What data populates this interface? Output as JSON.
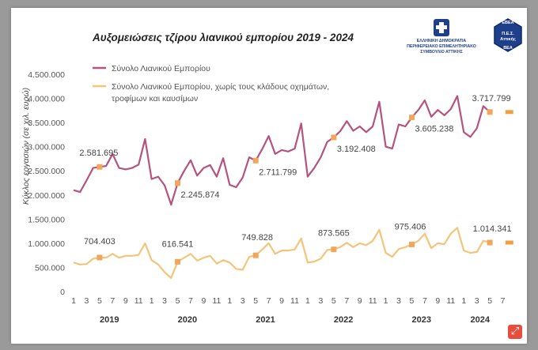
{
  "header": {
    "title": "Αυξομειώσεις τζίρου λιανικού εμπορίου 2019 - 2024",
    "logo_left_line1": "ΕΛΛΗΝΙΚΗ ΔΗΜΟΚΡΑΤΙΑ",
    "logo_left_line2": "ΠΕΡΙΦΕΡΕΙΑΚΟ ΕΠΙΜΕΛΗΤΗΡΙΑΚΟ",
    "logo_left_line3": "ΣΥΜΒΟΥΛΙΟ ΑΤΤΙΚΗΣ",
    "badge_line1": "Π.Ε.Σ.",
    "badge_line2": "Αττικής",
    "badge_ring_top": "ΕΒΕΑ",
    "badge_ring_bottom": "ΒΕΑ"
  },
  "colors": {
    "series1": "#b5537f",
    "series2": "#f3c57a",
    "marker": "#f2a65a",
    "projection": "#f0a040"
  },
  "chart_data": {
    "type": "line",
    "title": "Αυξομειώσεις τζίρου λιανικού εμπορίου 2019 - 2024",
    "ylabel": "Κύκλος εργασιών (σε χιλ. ευρώ)",
    "xlabel": "",
    "ylim": [
      0,
      4500000
    ],
    "yticks": [
      "0",
      "500.000",
      "1.000.000",
      "1.500.000",
      "2.000.000",
      "2.500.000",
      "3.000.000",
      "3.500.000",
      "4.000.000",
      "4.500.000"
    ],
    "ytick_values": [
      0,
      500000,
      1000000,
      1500000,
      2000000,
      2500000,
      3000000,
      3500000,
      4000000,
      4500000
    ],
    "xtick_labels": [
      "1",
      "3",
      "5",
      "7",
      "9",
      "11",
      "1",
      "3",
      "5",
      "7",
      "9",
      "11",
      "1",
      "3",
      "5",
      "7",
      "9",
      "11",
      "1",
      "3",
      "5",
      "7",
      "9",
      "11",
      "1",
      "3",
      "5",
      "7",
      "9",
      "11",
      "1",
      "3",
      "5",
      "7"
    ],
    "xtick_months": [
      1,
      3,
      5,
      7,
      9,
      11,
      13,
      15,
      17,
      19,
      21,
      23,
      25,
      27,
      29,
      31,
      33,
      35,
      37,
      39,
      41,
      43,
      45,
      47,
      49,
      51,
      53,
      55,
      57,
      59,
      61,
      63,
      65,
      67
    ],
    "years": [
      "2019",
      "2020",
      "2021",
      "2022",
      "2023",
      "2024"
    ],
    "year_center_months": [
      6.5,
      18.5,
      30.5,
      42.5,
      54.5,
      63.5
    ],
    "series": [
      {
        "name": "Σύνολο Λιανικού Εμπορίου",
        "values": [
          2100000,
          2060000,
          2300000,
          2560000,
          2581695,
          2600000,
          2850000,
          2560000,
          2530000,
          2560000,
          2630000,
          3160000,
          2330000,
          2380000,
          2200000,
          1800000,
          2245874,
          2500000,
          2720000,
          2400000,
          2560000,
          2620000,
          2380000,
          2760000,
          2210000,
          2160000,
          2360000,
          2780000,
          2711799,
          2950000,
          3220000,
          2850000,
          2930000,
          2900000,
          2960000,
          3480000,
          2380000,
          2560000,
          2780000,
          3100000,
          3192408,
          3320000,
          3530000,
          3330000,
          3420000,
          3300000,
          3420000,
          3930000,
          3000000,
          2960000,
          3460000,
          3420000,
          3605238,
          3760000,
          3960000,
          3620000,
          3760000,
          3650000,
          3780000,
          4050000,
          3300000,
          3200000,
          3380000,
          3840000,
          3717799
        ]
      },
      {
        "name": "Σύνολο Λιανικού Εμπορίου, χωρίς τους κλάδους οχημάτων, τροφίμων και καυσίμων",
        "values": [
          600000,
          560000,
          570000,
          680000,
          704403,
          700000,
          780000,
          700000,
          740000,
          740000,
          760000,
          1000000,
          650000,
          560000,
          400000,
          280000,
          616541,
          700000,
          780000,
          640000,
          700000,
          740000,
          580000,
          650000,
          600000,
          470000,
          450000,
          720000,
          749828,
          870000,
          1000000,
          780000,
          850000,
          850000,
          870000,
          1100000,
          600000,
          620000,
          680000,
          860000,
          873565,
          920000,
          1010000,
          920000,
          1000000,
          960000,
          1050000,
          1280000,
          800000,
          720000,
          880000,
          920000,
          975406,
          1050000,
          1200000,
          900000,
          1000000,
          980000,
          1200000,
          1320000,
          850000,
          800000,
          820000,
          1050000,
          1014341
        ]
      }
    ],
    "annotations": [
      {
        "series": 0,
        "month": 5,
        "label": "2.581.695"
      },
      {
        "series": 0,
        "month": 17,
        "label": "2.245.874"
      },
      {
        "series": 0,
        "month": 29,
        "label": "2.711.799"
      },
      {
        "series": 0,
        "month": 41,
        "label": "3.192.408"
      },
      {
        "series": 0,
        "month": 53,
        "label": "3.605.238"
      },
      {
        "series": 0,
        "month": 65,
        "label": "3.717.799"
      },
      {
        "series": 1,
        "month": 5,
        "label": "704.403"
      },
      {
        "series": 1,
        "month": 17,
        "label": "616.541"
      },
      {
        "series": 1,
        "month": 29,
        "label": "749.828"
      },
      {
        "series": 1,
        "month": 41,
        "label": "873.565"
      },
      {
        "series": 1,
        "month": 53,
        "label": "975.406"
      },
      {
        "series": 1,
        "month": 65,
        "label": "1.014.341"
      }
    ],
    "projections": [
      {
        "series": 0,
        "month": 68,
        "value": 3717799
      },
      {
        "series": 1,
        "month": 68,
        "value": 1014341
      }
    ],
    "legend_position": "top-left"
  },
  "legend": {
    "item1": "Σύνολο Λιανικού Εμπορίου",
    "item2_line1": "Σύνολο Λιανικού Εμπορίου, χωρίς τους κλάδους οχημάτων,",
    "item2_line2": "τροφίμων και καυσίμων"
  }
}
